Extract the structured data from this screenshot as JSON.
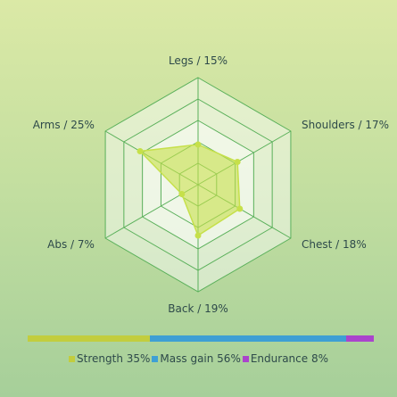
{
  "chart_data": [
    {
      "type": "radar",
      "title": "",
      "rmax": 40,
      "rings": 5,
      "axes": [
        {
          "label": "Legs / 15%",
          "value": 15
        },
        {
          "label": "Shoulders / 17%",
          "value": 17
        },
        {
          "label": "Chest / 18%",
          "value": 18
        },
        {
          "label": "Back / 19%",
          "value": 19
        },
        {
          "label": "Abs / 7%",
          "value": 7
        },
        {
          "label": "Arms / 25%",
          "value": 25
        }
      ],
      "series_color": "#c6e04a",
      "grid_color": "#5ab05a",
      "label_color": "#2e4a4a"
    },
    {
      "type": "stacked-bar",
      "segments": [
        {
          "label": "Strength 35%",
          "value": 35,
          "color": "#c2cd3e"
        },
        {
          "label": "Mass gain 56%",
          "value": 56,
          "color": "#3e9fd4"
        },
        {
          "label": "Endurance 8%",
          "value": 8,
          "color": "#aa44cc"
        }
      ]
    }
  ]
}
